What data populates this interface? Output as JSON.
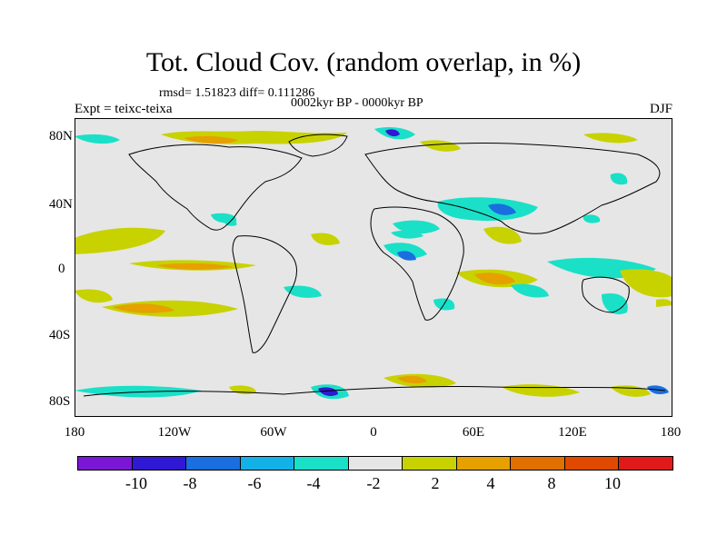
{
  "title": "Tot. Cloud Cov. (random overlap, in %)",
  "stats": "rmsd= 1.51823 diff= 0.111286",
  "period": "0002kyr BP - 0000kyr BP",
  "experiment": "Expt = teixc-teixa",
  "season": "DJF",
  "latitude_labels": [
    "80N",
    "40N",
    "0",
    "40S",
    "80S"
  ],
  "longitude_labels": [
    "180",
    "120W",
    "60W",
    "0",
    "60E",
    "120E",
    "180"
  ],
  "colors": {
    "ocean_background": "#e6e6e6",
    "bins": [
      "#7a17d6",
      "#3019d4",
      "#1a6ee0",
      "#14b0e8",
      "#1ae0c8",
      "#e6e6e6",
      "#c8d200",
      "#e6a000",
      "#e07000",
      "#e04a00",
      "#e01a1a"
    ]
  },
  "colorbar_labels": [
    "-10",
    "-8",
    "-6",
    "-4",
    "-2",
    "2",
    "4",
    "8",
    "10"
  ]
}
